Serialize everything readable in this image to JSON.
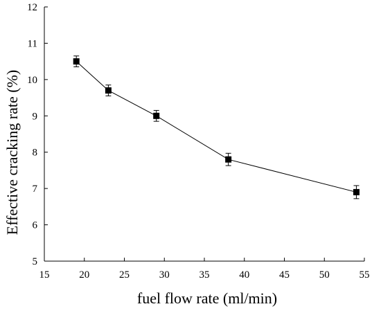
{
  "chart_data": {
    "type": "line",
    "title": "",
    "xlabel": "fuel flow rate (ml/min)",
    "ylabel": "Effective cracking rate (%)",
    "xlim": [
      15,
      55
    ],
    "ylim": [
      5,
      12
    ],
    "xticks": [
      15,
      20,
      25,
      30,
      35,
      40,
      45,
      50,
      55
    ],
    "yticks": [
      5,
      6,
      7,
      8,
      9,
      10,
      11,
      12
    ],
    "grid": false,
    "legend": "none",
    "marker": "square",
    "color": "#000000",
    "series": [
      {
        "x": [
          19,
          23,
          29,
          38,
          54
        ],
        "values": [
          10.5,
          9.7,
          9.0,
          7.8,
          6.9
        ],
        "error": [
          0.15,
          0.15,
          0.15,
          0.17,
          0.18
        ]
      }
    ]
  }
}
